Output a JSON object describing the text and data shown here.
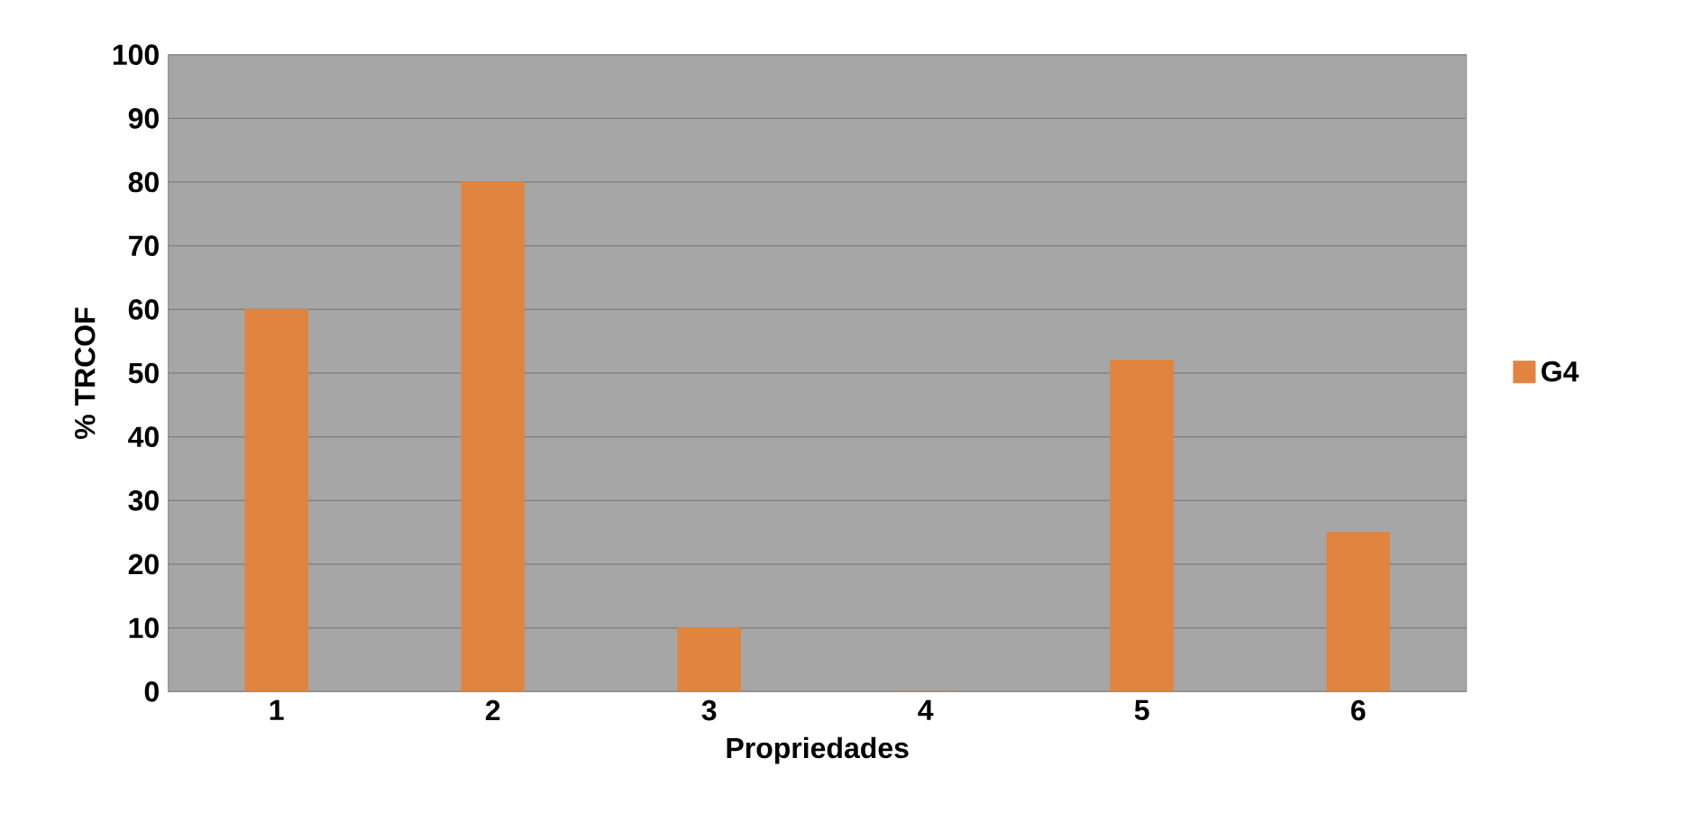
{
  "chart_data": {
    "type": "bar",
    "xlabel": "Propriedades",
    "ylabel": "% TRCOF",
    "categories": [
      "1",
      "2",
      "3",
      "4",
      "5",
      "6"
    ],
    "series": [
      {
        "name": "G4",
        "color": "#e0843f",
        "values": [
          60,
          80,
          10,
          0,
          52,
          25
        ]
      }
    ],
    "ylim": [
      0,
      100
    ],
    "yticks": [
      0,
      10,
      20,
      30,
      40,
      50,
      60,
      70,
      80,
      90,
      100
    ],
    "grid": "y",
    "legend": "right"
  }
}
